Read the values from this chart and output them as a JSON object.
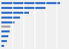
{
  "values": [
    26.5,
    20.0,
    12.5,
    8.5,
    6.0,
    4.2,
    3.9,
    3.0,
    2.4,
    1.2
  ],
  "bar_colors": [
    "#3571c8",
    "#3571c8",
    "#3571c8",
    "#3571c8",
    "#3571c8",
    "#a8a8a8",
    "#3571c8",
    "#3571c8",
    "#3571c8",
    "#3571c8"
  ],
  "background_color": "#f0f0f0",
  "plot_bg_color": "#f0f0f0",
  "grid_color": "#ffffff",
  "bar_height": 0.45,
  "xlim_max": 30.0
}
